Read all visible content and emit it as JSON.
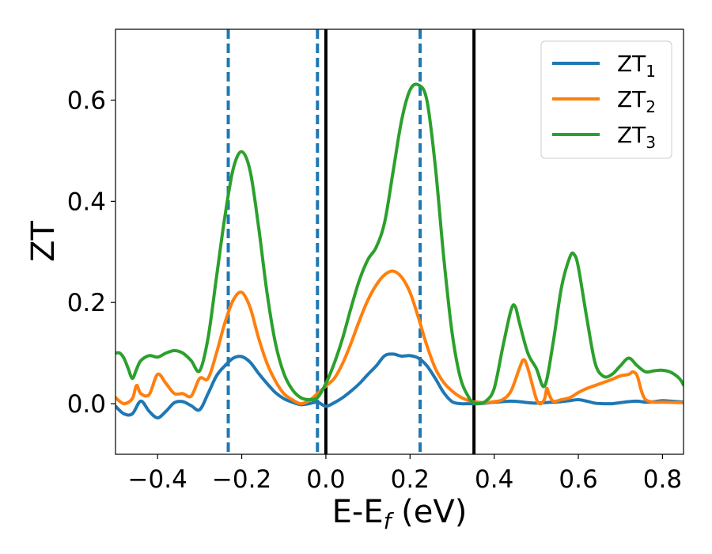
{
  "chart_data": {
    "type": "line",
    "xlabel": "E-E",
    "xlabel_sub": "f",
    "xlabel_unit": " (eV)",
    "ylabel": "ZT",
    "xlim": [
      -0.5,
      0.85
    ],
    "ylim": [
      -0.1,
      0.74
    ],
    "xticks": [
      -0.4,
      -0.2,
      0.0,
      0.2,
      0.4,
      0.6,
      0.8
    ],
    "xtick_labels": [
      "−0.4",
      "−0.2",
      "0.0",
      "0.2",
      "0.4",
      "0.6",
      "0.8"
    ],
    "yticks": [
      0.0,
      0.2,
      0.4,
      0.6
    ],
    "ytick_labels": [
      "0.0",
      "0.2",
      "0.4",
      "0.6"
    ],
    "grid": false,
    "legend_position": "top-right",
    "vlines_solid": [
      0.0,
      0.352
    ],
    "vlines_dashed": [
      -0.232,
      -0.02,
      0.224
    ],
    "vline_solid_color": "#000000",
    "vline_dashed_color": "#1f77b4",
    "series": [
      {
        "name": "ZT",
        "sub": "1",
        "color": "#1f77b4",
        "points": [
          [
            -0.5,
            -0.005
          ],
          [
            -0.48,
            -0.02
          ],
          [
            -0.46,
            -0.02
          ],
          [
            -0.44,
            0.005
          ],
          [
            -0.42,
            -0.015
          ],
          [
            -0.4,
            -0.028
          ],
          [
            -0.38,
            -0.015
          ],
          [
            -0.36,
            0.002
          ],
          [
            -0.34,
            0.004
          ],
          [
            -0.32,
            -0.004
          ],
          [
            -0.3,
            -0.012
          ],
          [
            -0.28,
            0.02
          ],
          [
            -0.26,
            0.055
          ],
          [
            -0.24,
            0.075
          ],
          [
            -0.22,
            0.09
          ],
          [
            -0.2,
            0.093
          ],
          [
            -0.18,
            0.082
          ],
          [
            -0.16,
            0.06
          ],
          [
            -0.14,
            0.04
          ],
          [
            -0.12,
            0.022
          ],
          [
            -0.1,
            0.01
          ],
          [
            -0.08,
            0.003
          ],
          [
            -0.06,
            -0.002
          ],
          [
            -0.04,
            0.0
          ],
          [
            -0.02,
            0.003
          ],
          [
            0.0,
            -0.005
          ],
          [
            0.02,
            0.002
          ],
          [
            0.04,
            0.012
          ],
          [
            0.06,
            0.025
          ],
          [
            0.08,
            0.04
          ],
          [
            0.1,
            0.058
          ],
          [
            0.12,
            0.075
          ],
          [
            0.14,
            0.095
          ],
          [
            0.16,
            0.098
          ],
          [
            0.18,
            0.094
          ],
          [
            0.2,
            0.095
          ],
          [
            0.22,
            0.09
          ],
          [
            0.24,
            0.075
          ],
          [
            0.26,
            0.05
          ],
          [
            0.28,
            0.022
          ],
          [
            0.3,
            0.004
          ],
          [
            0.32,
            0.0
          ],
          [
            0.34,
            0.0
          ],
          [
            0.36,
            0.0
          ],
          [
            0.38,
            0.001
          ],
          [
            0.4,
            0.003
          ],
          [
            0.42,
            0.004
          ],
          [
            0.44,
            0.005
          ],
          [
            0.46,
            0.004
          ],
          [
            0.48,
            0.002
          ],
          [
            0.5,
            0.001
          ],
          [
            0.52,
            0.002
          ],
          [
            0.54,
            0.003
          ],
          [
            0.56,
            0.004
          ],
          [
            0.58,
            0.006
          ],
          [
            0.6,
            0.008
          ],
          [
            0.62,
            0.005
          ],
          [
            0.64,
            0.001
          ],
          [
            0.66,
            0.0
          ],
          [
            0.68,
            0.0
          ],
          [
            0.7,
            0.002
          ],
          [
            0.72,
            0.004
          ],
          [
            0.74,
            0.005
          ],
          [
            0.76,
            0.003
          ],
          [
            0.78,
            0.004
          ],
          [
            0.8,
            0.006
          ],
          [
            0.82,
            0.005
          ],
          [
            0.85,
            0.003
          ]
        ]
      },
      {
        "name": "ZT",
        "sub": "2",
        "color": "#ff7f0e",
        "points": [
          [
            -0.5,
            0.012
          ],
          [
            -0.48,
            0.0
          ],
          [
            -0.46,
            0.01
          ],
          [
            -0.45,
            0.036
          ],
          [
            -0.44,
            0.02
          ],
          [
            -0.42,
            0.018
          ],
          [
            -0.4,
            0.058
          ],
          [
            -0.38,
            0.04
          ],
          [
            -0.36,
            0.02
          ],
          [
            -0.34,
            0.02
          ],
          [
            -0.32,
            0.015
          ],
          [
            -0.3,
            0.05
          ],
          [
            -0.28,
            0.05
          ],
          [
            -0.26,
            0.1
          ],
          [
            -0.24,
            0.16
          ],
          [
            -0.22,
            0.205
          ],
          [
            -0.2,
            0.22
          ],
          [
            -0.18,
            0.19
          ],
          [
            -0.16,
            0.13
          ],
          [
            -0.14,
            0.08
          ],
          [
            -0.12,
            0.045
          ],
          [
            -0.1,
            0.02
          ],
          [
            -0.08,
            0.008
          ],
          [
            -0.06,
            0.0
          ],
          [
            -0.04,
            0.006
          ],
          [
            -0.02,
            0.02
          ],
          [
            0.0,
            0.035
          ],
          [
            0.02,
            0.05
          ],
          [
            0.04,
            0.08
          ],
          [
            0.06,
            0.12
          ],
          [
            0.08,
            0.165
          ],
          [
            0.1,
            0.205
          ],
          [
            0.12,
            0.235
          ],
          [
            0.14,
            0.255
          ],
          [
            0.16,
            0.262
          ],
          [
            0.18,
            0.25
          ],
          [
            0.2,
            0.22
          ],
          [
            0.22,
            0.17
          ],
          [
            0.24,
            0.115
          ],
          [
            0.26,
            0.07
          ],
          [
            0.28,
            0.042
          ],
          [
            0.3,
            0.025
          ],
          [
            0.32,
            0.013
          ],
          [
            0.34,
            0.006
          ],
          [
            0.36,
            0.003
          ],
          [
            0.38,
            0.002
          ],
          [
            0.4,
            0.004
          ],
          [
            0.42,
            0.008
          ],
          [
            0.44,
            0.025
          ],
          [
            0.46,
            0.07
          ],
          [
            0.47,
            0.087
          ],
          [
            0.48,
            0.07
          ],
          [
            0.5,
            0.01
          ],
          [
            0.51,
            0.0
          ],
          [
            0.52,
            0.01
          ],
          [
            0.525,
            0.03
          ],
          [
            0.53,
            0.02
          ],
          [
            0.54,
            0.005
          ],
          [
            0.56,
            0.008
          ],
          [
            0.58,
            0.012
          ],
          [
            0.6,
            0.022
          ],
          [
            0.62,
            0.03
          ],
          [
            0.64,
            0.036
          ],
          [
            0.66,
            0.042
          ],
          [
            0.68,
            0.048
          ],
          [
            0.7,
            0.055
          ],
          [
            0.72,
            0.058
          ],
          [
            0.73,
            0.063
          ],
          [
            0.74,
            0.055
          ],
          [
            0.75,
            0.025
          ],
          [
            0.76,
            0.008
          ],
          [
            0.78,
            0.003
          ],
          [
            0.8,
            0.003
          ],
          [
            0.85,
            0.002
          ]
        ]
      },
      {
        "name": "ZT",
        "sub": "3",
        "color": "#2ca02c",
        "points": [
          [
            -0.5,
            0.1
          ],
          [
            -0.49,
            0.1
          ],
          [
            -0.48,
            0.09
          ],
          [
            -0.47,
            0.07
          ],
          [
            -0.46,
            0.05
          ],
          [
            -0.45,
            0.068
          ],
          [
            -0.44,
            0.085
          ],
          [
            -0.42,
            0.095
          ],
          [
            -0.4,
            0.092
          ],
          [
            -0.38,
            0.1
          ],
          [
            -0.36,
            0.105
          ],
          [
            -0.34,
            0.1
          ],
          [
            -0.32,
            0.085
          ],
          [
            -0.3,
            0.065
          ],
          [
            -0.28,
            0.13
          ],
          [
            -0.26,
            0.25
          ],
          [
            -0.24,
            0.37
          ],
          [
            -0.22,
            0.465
          ],
          [
            -0.2,
            0.498
          ],
          [
            -0.18,
            0.46
          ],
          [
            -0.16,
            0.35
          ],
          [
            -0.14,
            0.22
          ],
          [
            -0.12,
            0.12
          ],
          [
            -0.1,
            0.06
          ],
          [
            -0.08,
            0.028
          ],
          [
            -0.06,
            0.012
          ],
          [
            -0.04,
            0.008
          ],
          [
            -0.02,
            0.012
          ],
          [
            0.0,
            0.04
          ],
          [
            0.02,
            0.08
          ],
          [
            0.04,
            0.13
          ],
          [
            0.06,
            0.19
          ],
          [
            0.08,
            0.245
          ],
          [
            0.1,
            0.285
          ],
          [
            0.12,
            0.31
          ],
          [
            0.14,
            0.36
          ],
          [
            0.16,
            0.46
          ],
          [
            0.18,
            0.56
          ],
          [
            0.2,
            0.62
          ],
          [
            0.22,
            0.63
          ],
          [
            0.24,
            0.6
          ],
          [
            0.26,
            0.47
          ],
          [
            0.28,
            0.29
          ],
          [
            0.3,
            0.14
          ],
          [
            0.32,
            0.05
          ],
          [
            0.34,
            0.012
          ],
          [
            0.35,
            0.003
          ],
          [
            0.36,
            0.0
          ],
          [
            0.38,
            0.005
          ],
          [
            0.4,
            0.03
          ],
          [
            0.42,
            0.11
          ],
          [
            0.44,
            0.185
          ],
          [
            0.45,
            0.192
          ],
          [
            0.46,
            0.16
          ],
          [
            0.48,
            0.1
          ],
          [
            0.5,
            0.07
          ],
          [
            0.52,
            0.035
          ],
          [
            0.54,
            0.12
          ],
          [
            0.56,
            0.23
          ],
          [
            0.58,
            0.29
          ],
          [
            0.59,
            0.295
          ],
          [
            0.6,
            0.27
          ],
          [
            0.62,
            0.17
          ],
          [
            0.64,
            0.08
          ],
          [
            0.66,
            0.054
          ],
          [
            0.68,
            0.058
          ],
          [
            0.7,
            0.075
          ],
          [
            0.72,
            0.09
          ],
          [
            0.74,
            0.075
          ],
          [
            0.76,
            0.063
          ],
          [
            0.78,
            0.065
          ],
          [
            0.8,
            0.066
          ],
          [
            0.82,
            0.062
          ],
          [
            0.84,
            0.05
          ],
          [
            0.85,
            0.037
          ]
        ]
      }
    ]
  }
}
